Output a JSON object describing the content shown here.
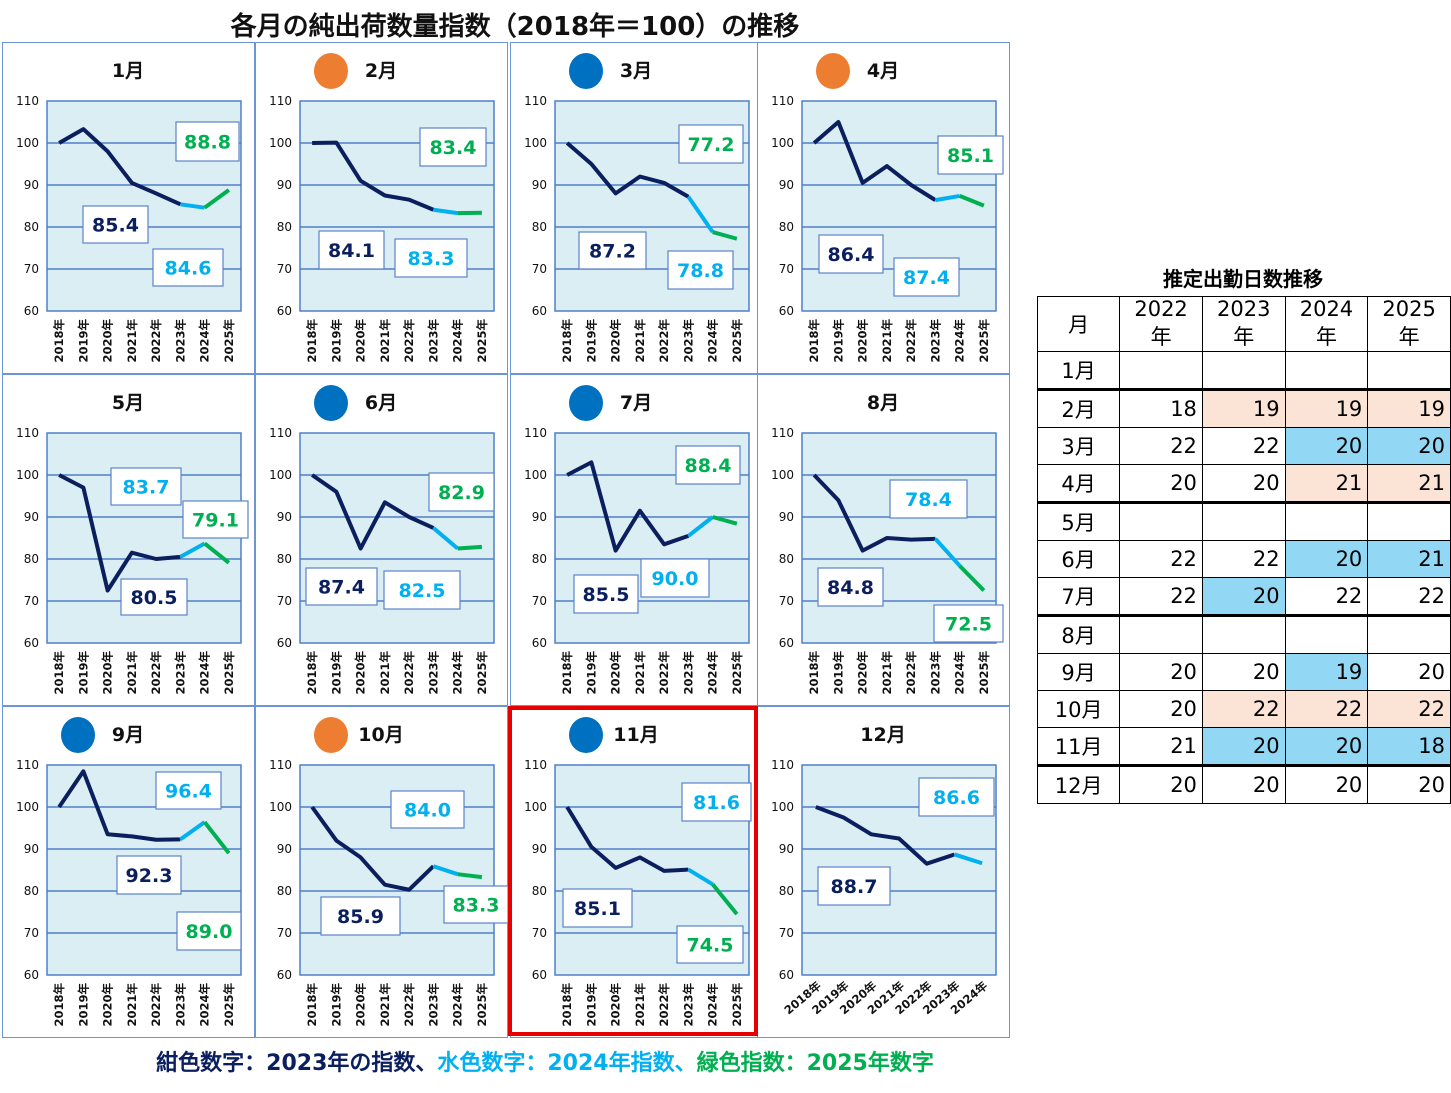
{
  "title": "各月の純出荷数量指数（2018年＝100）の推移",
  "legend": {
    "navy": "紺色数字：2023年の指数、",
    "lightblue": "水色数字：2024年指数、",
    "green": "緑色指数：2025年数字"
  },
  "colors": {
    "navy": "#0b1f5e",
    "lightblue": "#00b0f0",
    "green": "#00b050",
    "plot_bg": "#dbeef4",
    "grid": "#4f7fc9",
    "orange": "#ed7d31",
    "blue": "#0070c0",
    "highlight": "#e60000"
  },
  "chart_data": [
    {
      "type": "line",
      "title": "1月",
      "marker": null,
      "ylim": [
        60,
        110
      ],
      "yticks": [
        60,
        70,
        80,
        90,
        100,
        110
      ],
      "x": [
        "2018年",
        "2019年",
        "2020年",
        "2021年",
        "2022年",
        "2023年",
        "2024年",
        "2025年"
      ],
      "values": [
        100,
        103.3,
        98,
        90.5,
        88,
        85.4,
        84.6,
        88.8
      ],
      "labels": [
        "85.4",
        "84.6",
        "88.8"
      ]
    },
    {
      "type": "line",
      "title": "2月",
      "marker": "orange",
      "ylim": [
        60,
        110
      ],
      "yticks": [
        60,
        70,
        80,
        90,
        100,
        110
      ],
      "x": [
        "2018年",
        "2019年",
        "2020年",
        "2021年",
        "2022年",
        "2023年",
        "2024年",
        "2025年"
      ],
      "values": [
        100,
        100.1,
        91,
        87.5,
        86.5,
        84.1,
        83.3,
        83.4
      ],
      "labels": [
        "84.1",
        "83.3",
        "83.4"
      ]
    },
    {
      "type": "line",
      "title": "3月",
      "marker": "blue",
      "ylim": [
        60,
        110
      ],
      "yticks": [
        60,
        70,
        80,
        90,
        100,
        110
      ],
      "x": [
        "2018年",
        "2019年",
        "2020年",
        "2021年",
        "2022年",
        "2023年",
        "2024年",
        "2025年"
      ],
      "values": [
        100,
        95,
        88,
        92,
        90.5,
        87.2,
        78.8,
        77.2
      ],
      "labels": [
        "87.2",
        "78.8",
        "77.2"
      ]
    },
    {
      "type": "line",
      "title": "4月",
      "marker": "orange",
      "ylim": [
        60,
        110
      ],
      "yticks": [
        60,
        70,
        80,
        90,
        100,
        110
      ],
      "x": [
        "2018年",
        "2019年",
        "2020年",
        "2021年",
        "2022年",
        "2023年",
        "2024年",
        "2025年"
      ],
      "values": [
        100,
        105,
        90.5,
        94.5,
        90,
        86.4,
        87.4,
        85.1
      ],
      "labels": [
        "86.4",
        "87.4",
        "85.1"
      ]
    },
    {
      "type": "line",
      "title": "5月",
      "marker": null,
      "ylim": [
        60,
        110
      ],
      "yticks": [
        60,
        70,
        80,
        90,
        100,
        110
      ],
      "x": [
        "2018年",
        "2019年",
        "2020年",
        "2021年",
        "2022年",
        "2023年",
        "2024年",
        "2025年"
      ],
      "values": [
        100,
        97,
        72.5,
        81.5,
        80,
        80.5,
        83.7,
        79.1
      ],
      "labels": [
        "80.5",
        "83.7",
        "79.1"
      ]
    },
    {
      "type": "line",
      "title": "6月",
      "marker": "blue",
      "ylim": [
        60,
        110
      ],
      "yticks": [
        60,
        70,
        80,
        90,
        100,
        110
      ],
      "x": [
        "2018年",
        "2019年",
        "2020年",
        "2021年",
        "2022年",
        "2023年",
        "2024年",
        "2025年"
      ],
      "values": [
        100,
        96,
        82.5,
        93.5,
        90,
        87.4,
        82.5,
        82.9
      ],
      "labels": [
        "87.4",
        "82.5",
        "82.9"
      ]
    },
    {
      "type": "line",
      "title": "7月",
      "marker": "blue",
      "ylim": [
        60,
        110
      ],
      "yticks": [
        60,
        70,
        80,
        90,
        100,
        110
      ],
      "x": [
        "2018年",
        "2019年",
        "2020年",
        "2021年",
        "2022年",
        "2023年",
        "2024年",
        "2025年"
      ],
      "values": [
        100,
        103,
        82,
        91.5,
        83.5,
        85.5,
        90.0,
        88.4
      ],
      "labels": [
        "85.5",
        "90.0",
        "88.4"
      ]
    },
    {
      "type": "line",
      "title": "8月",
      "marker": null,
      "ylim": [
        60,
        110
      ],
      "yticks": [
        60,
        70,
        80,
        90,
        100,
        110
      ],
      "x": [
        "2018年",
        "2019年",
        "2020年",
        "2021年",
        "2022年",
        "2023年",
        "2024年",
        "2025年"
      ],
      "values": [
        100,
        94,
        82,
        85,
        84.6,
        84.8,
        78.4,
        72.5
      ],
      "labels": [
        "84.8",
        "78.4",
        "72.5"
      ]
    },
    {
      "type": "line",
      "title": "9月",
      "marker": "blue",
      "ylim": [
        60,
        110
      ],
      "yticks": [
        60,
        70,
        80,
        90,
        100,
        110
      ],
      "x": [
        "2018年",
        "2019年",
        "2020年",
        "2021年",
        "2022年",
        "2023年",
        "2024年",
        "2025年"
      ],
      "values": [
        100,
        108.5,
        93.5,
        93,
        92.2,
        92.3,
        96.4,
        89.0
      ],
      "labels": [
        "92.3",
        "96.4",
        "89.0"
      ]
    },
    {
      "type": "line",
      "title": "10月",
      "marker": "orange",
      "ylim": [
        60,
        110
      ],
      "yticks": [
        60,
        70,
        80,
        90,
        100,
        110
      ],
      "x": [
        "2018年",
        "2019年",
        "2020年",
        "2021年",
        "2022年",
        "2023年",
        "2024年",
        "2025年"
      ],
      "values": [
        100,
        92,
        88,
        81.5,
        80.3,
        85.9,
        84.0,
        83.3
      ],
      "labels": [
        "85.9",
        "84.0",
        "83.3"
      ]
    },
    {
      "type": "line",
      "title": "11月",
      "marker": "blue",
      "ylim": [
        60,
        110
      ],
      "yticks": [
        60,
        70,
        80,
        90,
        100,
        110
      ],
      "x": [
        "2018年",
        "2019年",
        "2020年",
        "2021年",
        "2022年",
        "2023年",
        "2024年",
        "2025年"
      ],
      "values": [
        100,
        90.5,
        85.5,
        88,
        84.8,
        85.1,
        81.6,
        74.5
      ],
      "labels": [
        "85.1",
        "81.6",
        "74.5"
      ]
    },
    {
      "type": "line",
      "title": "12月",
      "marker": null,
      "ylim": [
        60,
        110
      ],
      "yticks": [
        60,
        70,
        80,
        90,
        100,
        110
      ],
      "x": [
        "2018年",
        "2019年",
        "2020年",
        "2021年",
        "2022年",
        "2023年",
        "2024年"
      ],
      "values": [
        100,
        97.5,
        93.5,
        92.5,
        86.5,
        88.7,
        86.6
      ],
      "labels": [
        "88.7",
        "86.6"
      ]
    }
  ],
  "table": {
    "title": "推定出勤日数推移",
    "headers": [
      "月",
      "2022年",
      "2023年",
      "2024年",
      "2025年"
    ],
    "rows": [
      {
        "month": "1月",
        "cells": [
          "",
          "",
          "",
          ""
        ],
        "hl": [
          "",
          "",
          "",
          ""
        ]
      },
      {
        "month": "2月",
        "cells": [
          "18",
          "19",
          "19",
          "19"
        ],
        "hl": [
          "",
          "pink",
          "pink",
          "pink"
        ]
      },
      {
        "month": "3月",
        "cells": [
          "22",
          "22",
          "20",
          "20"
        ],
        "hl": [
          "",
          "",
          "blue",
          "blue"
        ]
      },
      {
        "month": "4月",
        "cells": [
          "20",
          "20",
          "21",
          "21"
        ],
        "hl": [
          "",
          "",
          "pink",
          "pink"
        ]
      },
      {
        "month": "5月",
        "cells": [
          "",
          "",
          "",
          ""
        ],
        "hl": [
          "",
          "",
          "",
          ""
        ]
      },
      {
        "month": "6月",
        "cells": [
          "22",
          "22",
          "20",
          "21"
        ],
        "hl": [
          "",
          "",
          "blue",
          "blue"
        ]
      },
      {
        "month": "7月",
        "cells": [
          "22",
          "20",
          "22",
          "22"
        ],
        "hl": [
          "",
          "blue",
          "",
          ""
        ]
      },
      {
        "month": "8月",
        "cells": [
          "",
          "",
          "",
          ""
        ],
        "hl": [
          "",
          "",
          "",
          ""
        ]
      },
      {
        "month": "9月",
        "cells": [
          "20",
          "20",
          "19",
          "20"
        ],
        "hl": [
          "",
          "",
          "blue",
          ""
        ]
      },
      {
        "month": "10月",
        "cells": [
          "20",
          "22",
          "22",
          "22"
        ],
        "hl": [
          "",
          "pink",
          "pink",
          "pink"
        ]
      },
      {
        "month": "11月",
        "cells": [
          "21",
          "20",
          "20",
          "18"
        ],
        "hl": [
          "",
          "blue",
          "blue",
          "blue"
        ]
      },
      {
        "month": "12月",
        "cells": [
          "20",
          "20",
          "20",
          "20"
        ],
        "hl": [
          "",
          "",
          "",
          ""
        ]
      }
    ]
  }
}
